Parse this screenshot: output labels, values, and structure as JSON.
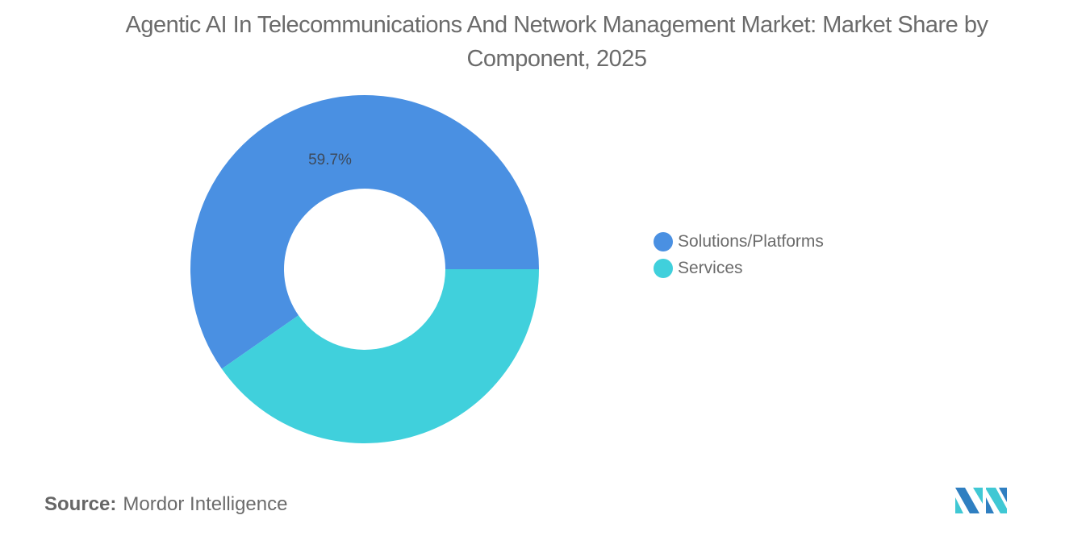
{
  "title": "Agentic AI In Telecommunications And Network Management Market: Market Share by Component, 2025",
  "source_label": "Source:",
  "source_value": "Mordor Intelligence",
  "chart_data": {
    "type": "pie",
    "variant": "donut",
    "title": "Agentic AI In Telecommunications And Network Management Market: Market Share by Component, 2025",
    "categories": [
      "Solutions/Platforms",
      "Services"
    ],
    "values": [
      59.7,
      40.3
    ],
    "colors": [
      "#4a90e2",
      "#40d0dc"
    ],
    "data_labels": [
      "59.7%",
      ""
    ],
    "legend_position": "right"
  },
  "legend": [
    {
      "label": "Solutions/Platforms",
      "color": "#4a90e2"
    },
    {
      "label": "Services",
      "color": "#40d0dc"
    }
  ],
  "slice_label": "59.7%"
}
